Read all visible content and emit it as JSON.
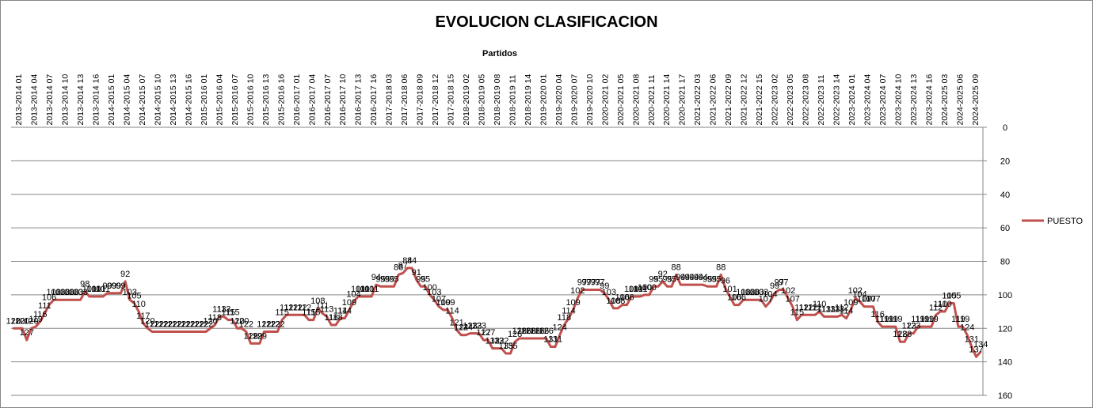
{
  "chart_data": {
    "type": "line",
    "title": "EVOLUCION CLASIFICACION",
    "xlabel": "Partidos",
    "ylabel": "",
    "y_reversed": true,
    "ylim": [
      0,
      160
    ],
    "yticks": [
      0,
      20,
      40,
      60,
      80,
      100,
      120,
      140,
      160
    ],
    "grid": true,
    "legend_position": "right",
    "colors": {
      "series": "#C0504D",
      "grid": "#868686",
      "axis": "#868686",
      "text": "#000000"
    },
    "x_tick_labels": [
      "2013-2014 01",
      "2013-2014 04",
      "2013-2014 07",
      "2013-2014 10",
      "2013-2014 13",
      "2013-2014 16",
      "2014-2015 01",
      "2014-2015 04",
      "2014-2015 07",
      "2014-2015 10",
      "2014-2015 13",
      "2014-2015 16",
      "2015-2016 01",
      "2015-2016 04",
      "2015-2016 07",
      "2015-2016 10",
      "2015-2016 13",
      "2015-2016 16",
      "2016-2017 01",
      "2016-2017 04",
      "2016-2017 07",
      "2016-2017 10",
      "2016-2017 13",
      "2016-2017 16",
      "2017-2018 03",
      "2017-2018 06",
      "2017-2018 09",
      "2017-2018 12",
      "2017-2018 15",
      "2018-2019 02",
      "2018-2019 05",
      "2018-2019 08",
      "2018-2019 11",
      "2018-2019 14",
      "2019-2020 01",
      "2019-2020 04",
      "2019-2020 07",
      "2019-2020 10",
      "2020-2021 02",
      "2020-2021 05",
      "2020-2021 08",
      "2020-2021 11",
      "2020-2021 14",
      "2020-2021 17",
      "2021-2022 03",
      "2021-2022 06",
      "2021-2022 09",
      "2021-2022 12",
      "2021-2022 15",
      "2022-2023 02",
      "2022-2023 05",
      "2022-2023 08",
      "2022-2023 11",
      "2022-2023 14",
      "2023-2024 01",
      "2023-2024 04",
      "2023-2024 07",
      "2023-2024 10",
      "2023-2024 13",
      "2023-2024 16",
      "2024-2025 03",
      "2024-2025 06",
      "2024-2025 09"
    ],
    "series": [
      {
        "name": "PUESTO",
        "values": [
          120,
          120,
          120,
          127,
          120,
          119,
          116,
          111,
          106,
          103,
          103,
          103,
          103,
          103,
          103,
          103,
          98,
          101,
          101,
          101,
          101,
          99,
          99,
          99,
          99,
          92,
          103,
          105,
          110,
          117,
          120,
          122,
          122,
          122,
          122,
          122,
          122,
          122,
          122,
          122,
          122,
          122,
          122,
          122,
          120,
          118,
          113,
          113,
          115,
          115,
          120,
          120,
          122,
          129,
          129,
          129,
          122,
          122,
          122,
          122,
          115,
          112,
          112,
          112,
          112,
          112,
          115,
          115,
          108,
          111,
          113,
          118,
          118,
          114,
          114,
          109,
          104,
          101,
          101,
          101,
          101,
          94,
          95,
          95,
          95,
          95,
          88,
          87,
          84,
          84,
          91,
          95,
          95,
          100,
          103,
          107,
          109,
          109,
          114,
          121,
          124,
          124,
          123,
          123,
          123,
          127,
          127,
          132,
          132,
          132,
          135,
          135,
          128,
          126,
          126,
          126,
          126,
          126,
          126,
          126,
          131,
          131,
          124,
          118,
          114,
          109,
          102,
          97,
          97,
          97,
          97,
          97,
          99,
          103,
          108,
          108,
          106,
          106,
          101,
          101,
          101,
          100,
          100,
          95,
          95,
          92,
          95,
          95,
          88,
          94,
          94,
          94,
          94,
          94,
          94,
          95,
          95,
          95,
          88,
          96,
          101,
          106,
          106,
          103,
          103,
          103,
          103,
          103,
          107,
          104,
          99,
          97,
          97,
          102,
          107,
          115,
          112,
          112,
          112,
          112,
          110,
          113,
          113,
          113,
          113,
          112,
          114,
          109,
          102,
          104,
          107,
          107,
          107,
          116,
          119,
          119,
          119,
          119,
          128,
          128,
          123,
          123,
          119,
          119,
          119,
          119,
          112,
          110,
          110,
          105,
          105,
          119,
          119,
          124,
          131,
          137,
          134
        ]
      }
    ]
  }
}
